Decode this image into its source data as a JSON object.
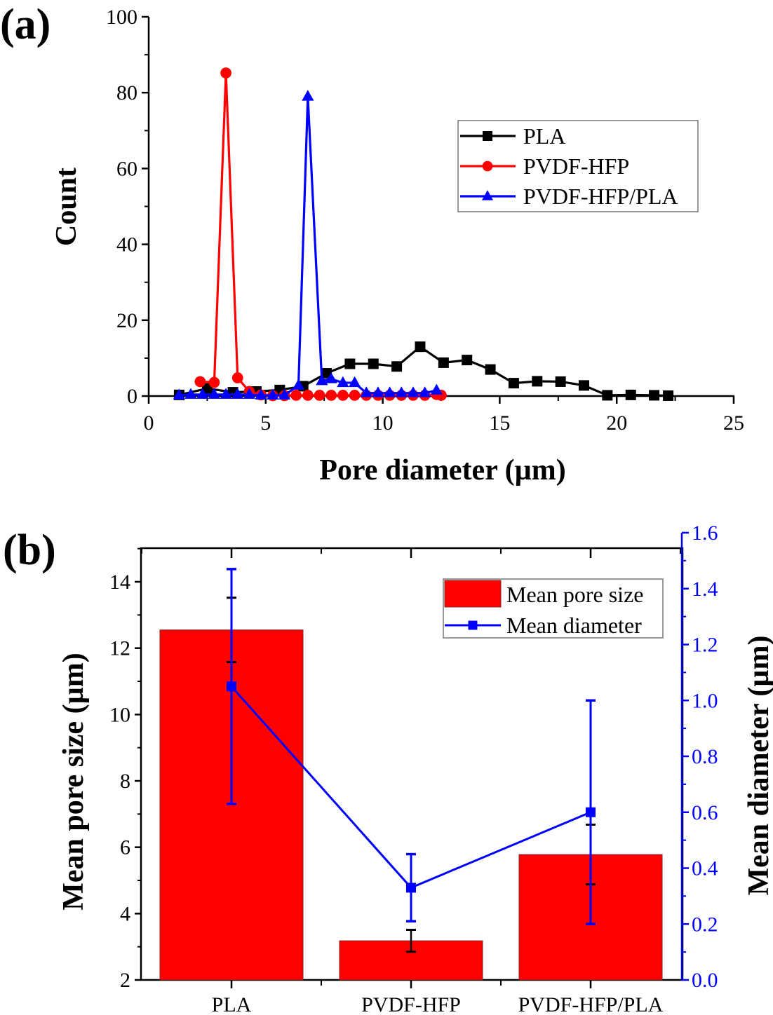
{
  "chart_data": [
    {
      "panel_label": "(a)",
      "type": "line",
      "title": "",
      "xlabel": "Pore diameter (µm)",
      "ylabel": "Count",
      "xlim": [
        0,
        25
      ],
      "ylim": [
        0,
        100
      ],
      "xticks": [
        "0",
        "5",
        "10",
        "15",
        "20",
        "25"
      ],
      "yticks": [
        "0",
        "20",
        "40",
        "60",
        "80",
        "100"
      ],
      "grid": false,
      "legend_position": "top-right",
      "series": [
        {
          "name": "PLA",
          "color": "#000000",
          "marker": "square",
          "x": [
            1.3,
            2.5,
            3.6,
            4.6,
            5.6,
            6.6,
            7.6,
            8.6,
            9.6,
            10.6,
            11.6,
            12.6,
            13.6,
            14.6,
            15.6,
            16.6,
            17.6,
            18.6,
            19.6,
            20.6,
            21.6,
            22.2
          ],
          "y": [
            0.3,
            2,
            1,
            1.2,
            1.6,
            2.6,
            6,
            8.5,
            8.5,
            7.8,
            13,
            8.8,
            9.5,
            7,
            3.4,
            3.9,
            3.8,
            2.8,
            0.2,
            0.3,
            0.2,
            0.1
          ]
        },
        {
          "name": "PVDF-HFP",
          "color": "#ff0000",
          "marker": "circle",
          "x": [
            2.2,
            2.8,
            3.3,
            3.8,
            4.3,
            4.8,
            5.3,
            5.8,
            6.3,
            6.8,
            7.3,
            7.8,
            8.3,
            8.8,
            9.3,
            9.8,
            10.3,
            10.8,
            11.3,
            11.8,
            12.3,
            12.5
          ],
          "y": [
            3.8,
            3.6,
            85.2,
            4.8,
            1.2,
            0.3,
            0.1,
            0.1,
            0.2,
            0.2,
            0.2,
            0.2,
            0.2,
            0.2,
            0.2,
            0.2,
            0.2,
            0.2,
            0.2,
            0.2,
            0.4,
            0.2
          ]
        },
        {
          "name": "PVDF-HFP/PLA",
          "color": "#0000ff",
          "marker": "triangle",
          "x": [
            1.3,
            1.8,
            2.3,
            2.8,
            3.3,
            3.8,
            4.3,
            4.8,
            5.3,
            5.8,
            6.4,
            6.8,
            7.4,
            7.8,
            8.3,
            8.8,
            9.3,
            9.8,
            10.3,
            10.8,
            11.3,
            11.8,
            12.3
          ],
          "y": [
            0.2,
            0.4,
            0.4,
            0.4,
            0.4,
            0.4,
            0.4,
            0.2,
            0.2,
            0.2,
            2.8,
            79,
            4,
            4.5,
            3.5,
            3.5,
            0.8,
            0.8,
            0.8,
            0.8,
            0.8,
            0.8,
            1.5
          ]
        }
      ]
    },
    {
      "panel_label": "(b)",
      "type": "bar",
      "title": "",
      "categories": [
        "PLA",
        "PVDF-HFP",
        "PVDF-HFP/PLA"
      ],
      "xlabel": "",
      "ylabel": "Mean pore size (µm)",
      "y2label": "Mean diameter (µm)",
      "ylim": [
        2,
        15
      ],
      "y2lim": [
        0,
        1.6
      ],
      "yticks": [
        "2",
        "4",
        "6",
        "8",
        "10",
        "12",
        "14"
      ],
      "y2ticks": [
        "0.0",
        "0.2",
        "0.4",
        "0.6",
        "0.8",
        "1.0",
        "1.2",
        "1.4",
        "1.6"
      ],
      "grid": false,
      "legend_position": "top-right",
      "series": [
        {
          "name": "Mean pore size",
          "type": "bar",
          "axis": "left",
          "color": "#ff0000",
          "values": [
            12.55,
            3.18,
            5.78
          ],
          "error": [
            0.97,
            0.33,
            0.9
          ]
        },
        {
          "name": "Mean diameter",
          "type": "line",
          "axis": "right",
          "color": "#0000ff",
          "marker": "square",
          "values": [
            1.05,
            0.33,
            0.6
          ],
          "error_low": [
            0.42,
            0.12,
            0.4
          ],
          "error_high": [
            0.42,
            0.12,
            0.4
          ]
        }
      ]
    }
  ]
}
